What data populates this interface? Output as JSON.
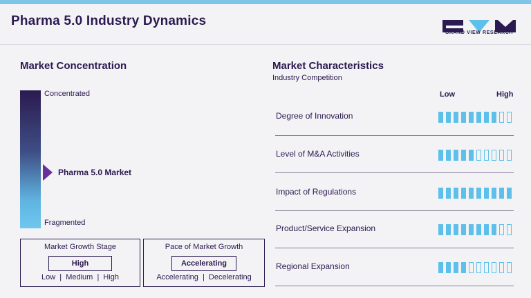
{
  "header": {
    "title": "Pharma 5.0 Industry Dynamics",
    "brand": "GRAND VIEW RESEARCH"
  },
  "concentration": {
    "heading": "Market Concentration",
    "top_label": "Concentrated",
    "bottom_label": "Fragmented",
    "marker_label": "Pharma 5.0 Market",
    "marker_level": 0.41
  },
  "growth_stage": {
    "title": "Market Growth Stage",
    "value": "High",
    "scale": "Low  |  Medium  |  High"
  },
  "growth_pace": {
    "title": "Pace of Market Growth",
    "value": "Accelerating",
    "scale": "Accelerating  |  Decelerating"
  },
  "characteristics": {
    "heading": "Market Characteristics",
    "subheading": "Industry Competition",
    "low_label": "Low",
    "high_label": "High",
    "segments_total": 10,
    "items": [
      {
        "label": "Degree of Innovation",
        "level": 8
      },
      {
        "label": "Level of M&A Activities",
        "level": 5
      },
      {
        "label": "Impact of Regulations",
        "level": 10
      },
      {
        "label": "Product/Service Expansion",
        "level": 8
      },
      {
        "label": "Regional Expansion",
        "level": 4
      }
    ]
  },
  "colors": {
    "accent": "#5dc0ea",
    "brand": "#2b1a4f",
    "marker": "#6a2f9a"
  }
}
